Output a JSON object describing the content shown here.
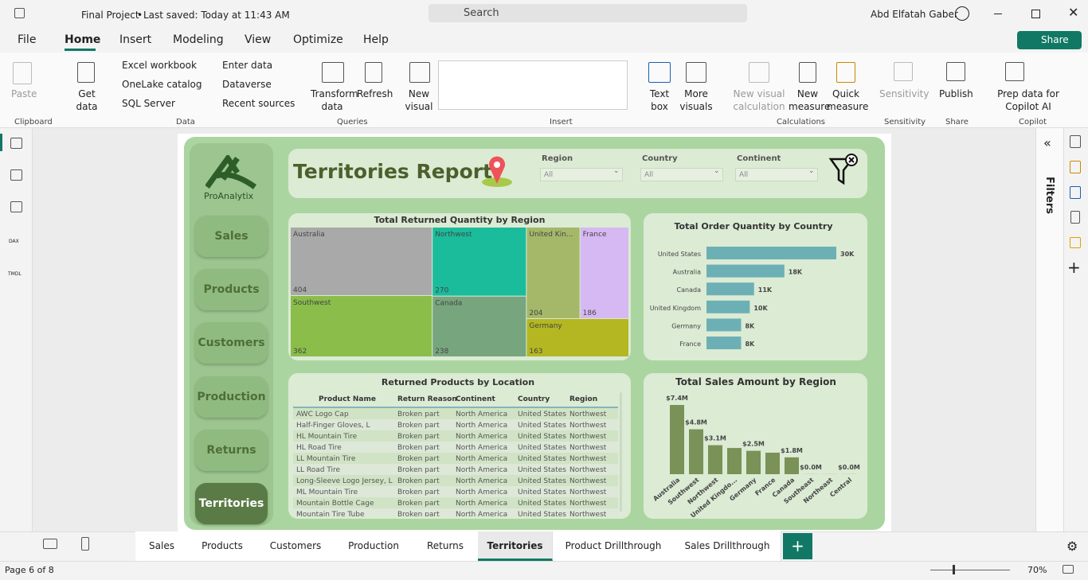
{
  "titlebar": {
    "file": "Final Project",
    "saved": "Last saved: Today at 11:43 AM",
    "search": "Search",
    "user": "Abd Elfatah Gaber"
  },
  "menu": {
    "items": [
      "File",
      "Home",
      "Insert",
      "Modeling",
      "View",
      "Optimize",
      "Help"
    ],
    "share": "Share"
  },
  "ribbon": {
    "clipboard": {
      "paste": "Paste",
      "label": "Clipboard"
    },
    "data": {
      "get_data": "Get data",
      "excel": "Excel workbook",
      "onelake": "OneLake catalog",
      "sql": "SQL Server",
      "enter": "Enter data",
      "dataverse": "Dataverse",
      "recent": "Recent sources",
      "label": "Data"
    },
    "queries": {
      "transform": "Transform data",
      "refresh": "Refresh",
      "label": "Queries"
    },
    "insert": {
      "new_visual": "New visual",
      "text_box": "Text box",
      "more_visuals": "More visuals",
      "label": "Insert"
    },
    "calculations": {
      "new_visual_calc": "New visual calculation",
      "new_measure": "New measure",
      "quick_measure": "Quick measure",
      "label": "Calculations"
    },
    "sensitivity": {
      "button": "Sensitivity",
      "label": "Sensitivity"
    },
    "share": {
      "publish": "Publish",
      "label": "Share"
    },
    "copilot": {
      "prep": "Prep data for Copilot AI",
      "label": "Copilot"
    }
  },
  "sidebar": {
    "dax": "DAX",
    "tmdl": "TMDL"
  },
  "report": {
    "logo": "ProAnalytix",
    "nav": [
      "Sales",
      "Products",
      "Customers",
      "Production",
      "Returns",
      "Territories"
    ],
    "title": "Territories Report",
    "slicers": [
      {
        "label": "Region",
        "value": "All"
      },
      {
        "label": "Country",
        "value": "All"
      },
      {
        "label": "Continent",
        "value": "All"
      }
    ]
  },
  "treemap": {
    "type": "treemap",
    "title": "Total Returned Quantity by Region",
    "categories": [
      "Australia",
      "Northwest",
      "United Kin...",
      "France",
      "Southwest",
      "Canada",
      "Germany"
    ],
    "values": [
      404,
      270,
      204,
      186,
      362,
      238,
      163
    ],
    "colors": [
      "#a9a9a9",
      "#1abc9c",
      "#a5b86a",
      "#d6b8f3",
      "#8abd4a",
      "#77a67e",
      "#b5b722"
    ]
  },
  "country_chart": {
    "type": "bar",
    "title": "Total Order Quantity by Country",
    "categories": [
      "United States",
      "Australia",
      "Canada",
      "United Kingdom",
      "Germany",
      "France"
    ],
    "values": [
      30,
      18,
      11,
      10,
      8,
      8
    ],
    "value_labels": [
      "30K",
      "18K",
      "11K",
      "10K",
      "8K",
      "8K"
    ],
    "color": "#6cb0b6"
  },
  "returns_table": {
    "type": "table",
    "title": "Returned Products by Location",
    "columns": [
      "Product Name",
      "Return Reason",
      "Continent",
      "Country",
      "Region"
    ],
    "rows": [
      [
        "AWC Logo Cap",
        "Broken part",
        "North America",
        "United States",
        "Northwest"
      ],
      [
        "Half-Finger Gloves, L",
        "Broken part",
        "North America",
        "United States",
        "Northwest"
      ],
      [
        "HL Mountain Tire",
        "Broken part",
        "North America",
        "United States",
        "Northwest"
      ],
      [
        "HL Road Tire",
        "Broken part",
        "North America",
        "United States",
        "Northwest"
      ],
      [
        "LL Mountain Tire",
        "Broken part",
        "North America",
        "United States",
        "Northwest"
      ],
      [
        "LL Road Tire",
        "Broken part",
        "North America",
        "United States",
        "Northwest"
      ],
      [
        "Long-Sleeve Logo Jersey, L",
        "Broken part",
        "North America",
        "United States",
        "Northwest"
      ],
      [
        "ML Mountain Tire",
        "Broken part",
        "North America",
        "United States",
        "Northwest"
      ],
      [
        "Mountain Bottle Cage",
        "Broken part",
        "North America",
        "United States",
        "Northwest"
      ],
      [
        "Mountain Tire Tube",
        "Broken part",
        "North America",
        "United States",
        "Northwest"
      ]
    ]
  },
  "sales_chart": {
    "type": "column",
    "title": "Total Sales Amount by Region",
    "categories": [
      "Australia",
      "Southwest",
      "Northwest",
      "United Kingdo...",
      "Germany",
      "France",
      "Canada",
      "Southeast",
      "Northeast",
      "Central"
    ],
    "values": [
      7.4,
      4.8,
      3.1,
      2.8,
      2.5,
      2.3,
      1.8,
      0.01,
      0.01,
      0.01
    ],
    "value_labels": [
      "$7.4M",
      "$4.8M",
      "$3.1M",
      null,
      "$2.5M",
      null,
      "$1.8M",
      "$0.0M",
      null,
      "$0.0M"
    ],
    "color": "#7a9157"
  },
  "filters": "Filters",
  "tabs": {
    "pages": [
      "Sales",
      "Products",
      "Customers",
      "Production",
      "Returns",
      "Territories",
      "Product Drillthrough",
      "Sales Drillthrough"
    ],
    "active": 5
  },
  "status": {
    "page": "Page 6 of 8",
    "zoom": "70%"
  }
}
